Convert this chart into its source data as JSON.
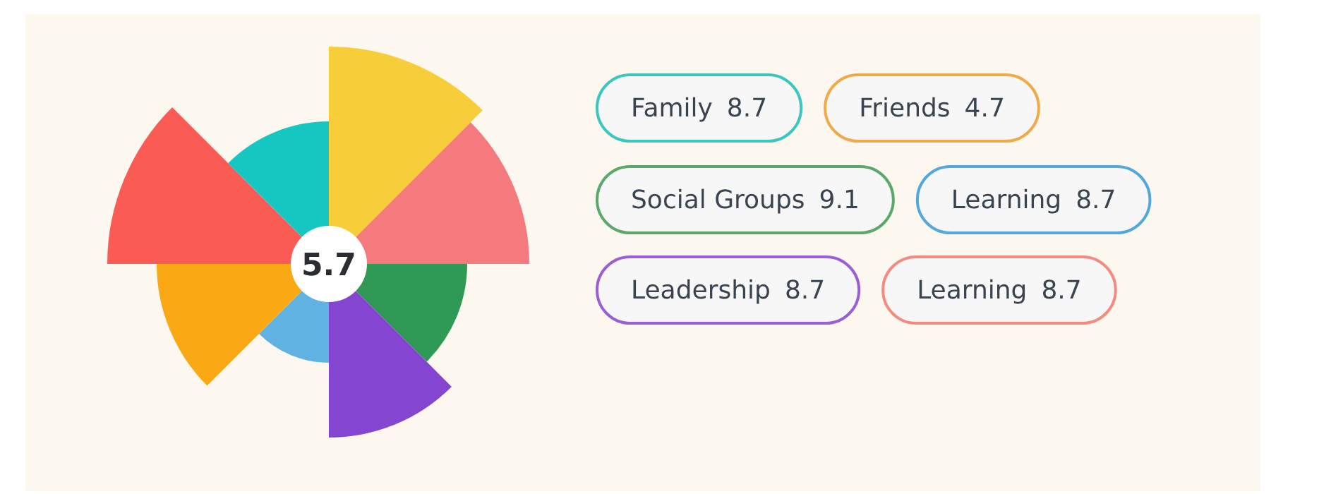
{
  "chart_data": {
    "type": "other",
    "categories": [
      "Family",
      "Friends",
      "Social Groups",
      "Learning",
      "Leadership",
      "Learning"
    ],
    "values": [
      8.7,
      4.7,
      9.1,
      8.7,
      8.7,
      8.7
    ],
    "colors": [
      "#3cc6c0",
      "#f2a94a",
      "#5aa86a",
      "#52a8dc",
      "#9a5fd6",
      "#f48a80"
    ],
    "data_labels": true,
    "annotations": [
      "5.7"
    ]
  }
}
